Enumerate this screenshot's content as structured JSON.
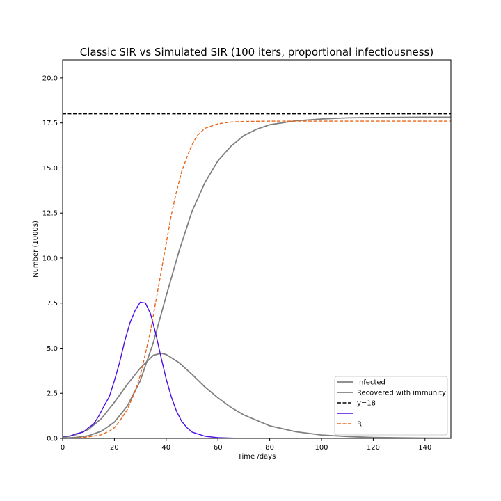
{
  "chart_data": {
    "type": "line",
    "title": "Classic SIR vs Simulated SIR (100 iters, proportional infectiousness)",
    "xlabel": "Time /days",
    "ylabel": "Number (1000s)",
    "xlim": [
      0,
      150
    ],
    "ylim": [
      0,
      21
    ],
    "xticks": [
      0,
      20,
      40,
      60,
      80,
      100,
      120,
      140
    ],
    "xtick_labels": [
      "0",
      "20",
      "40",
      "60",
      "80",
      "100",
      "120",
      "140"
    ],
    "yticks": [
      0,
      2.5,
      5,
      7.5,
      10,
      12.5,
      15,
      17.5,
      20
    ],
    "ytick_labels": [
      "0.0",
      "2.5",
      "5.0",
      "7.5",
      "10.0",
      "12.5",
      "15.0",
      "17.5",
      "20.0"
    ],
    "grid": false,
    "legend_position": "lower-right",
    "series": [
      {
        "name": "Infected",
        "color": "#808080",
        "style": "solid",
        "x": [
          0,
          5,
          10,
          15,
          20,
          25,
          30,
          35,
          38,
          40,
          45,
          50,
          55,
          60,
          65,
          70,
          80,
          90,
          100,
          110,
          120,
          130,
          140,
          150
        ],
        "y": [
          0.05,
          0.2,
          0.5,
          1.1,
          2.0,
          3.0,
          3.9,
          4.6,
          4.72,
          4.65,
          4.2,
          3.55,
          2.85,
          2.25,
          1.72,
          1.3,
          0.7,
          0.37,
          0.19,
          0.1,
          0.05,
          0.03,
          0.02,
          0.01
        ]
      },
      {
        "name": "Recovered with immunity",
        "color": "#808080",
        "style": "solid",
        "x": [
          0,
          5,
          10,
          15,
          20,
          25,
          30,
          35,
          40,
          45,
          50,
          55,
          60,
          65,
          70,
          75,
          80,
          90,
          100,
          110,
          120,
          130,
          140,
          150
        ],
        "y": [
          0.01,
          0.05,
          0.15,
          0.4,
          0.9,
          1.8,
          3.2,
          5.3,
          7.9,
          10.4,
          12.6,
          14.2,
          15.4,
          16.2,
          16.8,
          17.15,
          17.4,
          17.62,
          17.72,
          17.78,
          17.8,
          17.81,
          17.82,
          17.82
        ]
      },
      {
        "name": "y=18",
        "color": "#000000",
        "style": "dashed",
        "x": [
          0,
          150
        ],
        "y": [
          18,
          18
        ]
      },
      {
        "name": "I",
        "color": "#4b0ee6",
        "style": "solid",
        "x": [
          0,
          3,
          5,
          8,
          10,
          12,
          14,
          16,
          18,
          20,
          22,
          24,
          26,
          28,
          30,
          32,
          34,
          36,
          38,
          40,
          42,
          44,
          46,
          48,
          50,
          55,
          60,
          65,
          70,
          80,
          100,
          150
        ],
        "y": [
          0.12,
          0.13,
          0.25,
          0.35,
          0.6,
          0.8,
          1.25,
          1.8,
          2.3,
          3.2,
          4.2,
          5.4,
          6.4,
          7.1,
          7.55,
          7.5,
          6.9,
          5.8,
          4.5,
          3.3,
          2.3,
          1.5,
          0.95,
          0.6,
          0.35,
          0.12,
          0.04,
          0.015,
          0.005,
          0,
          0,
          0
        ]
      },
      {
        "name": "R",
        "color": "#e8661a",
        "style": "dashed",
        "x": [
          0,
          5,
          10,
          15,
          18,
          20,
          22,
          25,
          28,
          30,
          32,
          34,
          36,
          38,
          40,
          42,
          44,
          46,
          48,
          50,
          52,
          55,
          60,
          65,
          70,
          80,
          100,
          150
        ],
        "y": [
          0.0,
          0.02,
          0.08,
          0.2,
          0.4,
          0.6,
          0.95,
          1.6,
          2.6,
          3.5,
          4.7,
          6.0,
          7.6,
          9.2,
          10.8,
          12.4,
          13.7,
          14.8,
          15.6,
          16.3,
          16.8,
          17.2,
          17.45,
          17.55,
          17.58,
          17.6,
          17.6,
          17.6
        ]
      }
    ]
  }
}
